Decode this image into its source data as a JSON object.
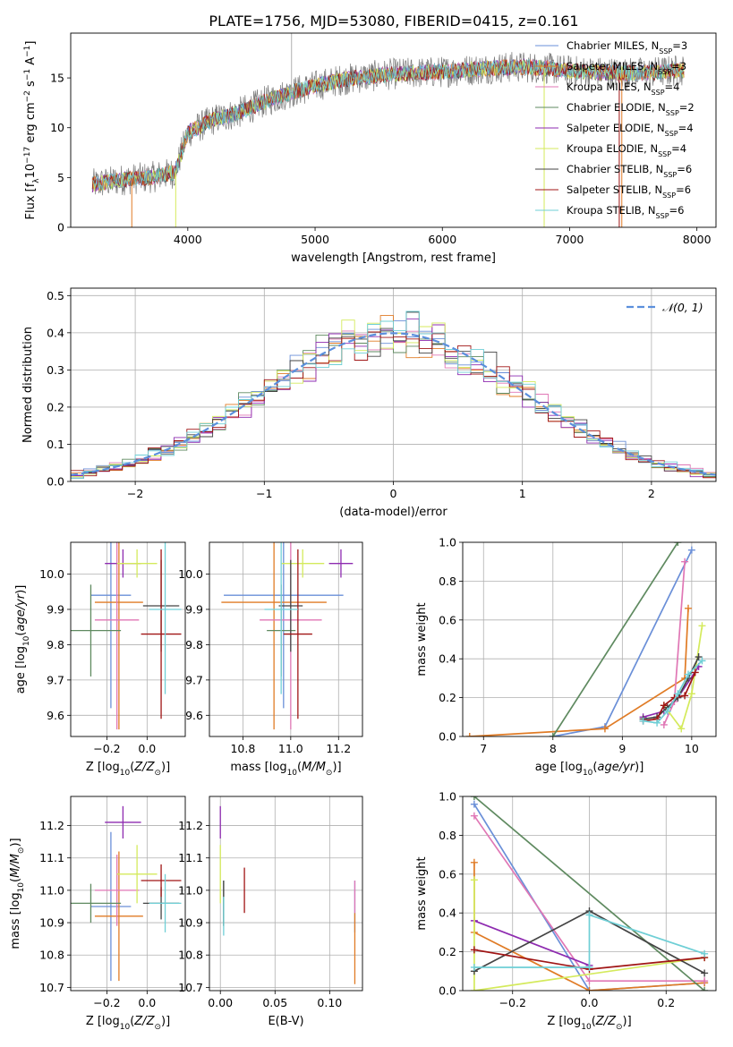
{
  "figure": {
    "title": "PLATE=1756, MJD=53080, FIBERID=0415, z=0.161"
  },
  "colors": {
    "chabrier_miles": "#6a8fd8",
    "salpeter_miles": "#e07b25",
    "kroupa_miles": "#e077b5",
    "chabrier_elodie": "#5f8a60",
    "salpeter_elodie": "#8e2bb0",
    "kroupa_elodie": "#d4ea5c",
    "chabrier_stelib": "#444444",
    "salpeter_stelib": "#a01515",
    "kroupa_stelib": "#6fcfd6",
    "grid": "#b0b0b0",
    "normal_curve": "#5b8fdc"
  },
  "chart_data": [
    {
      "id": "spectrum",
      "type": "line",
      "xlabel": "wavelength [Angstrom, rest frame]",
      "ylabel": "Flux [f_λ10^-17 erg cm^-2 s^-1 A^-1]",
      "xlim": [
        3080,
        8150
      ],
      "ylim": [
        0,
        19.5
      ],
      "xticks": [
        4000,
        5000,
        6000,
        7000,
        8000
      ],
      "yticks": [
        0,
        5,
        10,
        15
      ],
      "grid": false,
      "legend_position": "right",
      "legend": [
        {
          "label": "Chabrier MILES, N",
          "sub": "SSP",
          "suffix": "=3",
          "color_key": "chabrier_miles"
        },
        {
          "label": "Salpeter MILES, N",
          "sub": "SSP",
          "suffix": "=3",
          "color_key": "salpeter_miles"
        },
        {
          "label": "Kroupa MILES, N",
          "sub": "SSP",
          "suffix": "=4",
          "color_key": "kroupa_miles"
        },
        {
          "label": "Chabrier ELODIE, N",
          "sub": "SSP",
          "suffix": "=2",
          "color_key": "chabrier_elodie"
        },
        {
          "label": "Salpeter ELODIE, N",
          "sub": "SSP",
          "suffix": "=4",
          "color_key": "salpeter_elodie"
        },
        {
          "label": "Kroupa ELODIE, N",
          "sub": "SSP",
          "suffix": "=4",
          "color_key": "kroupa_elodie"
        },
        {
          "label": "Chabrier STELIB, N",
          "sub": "SSP",
          "suffix": "=6",
          "color_key": "chabrier_stelib"
        },
        {
          "label": "Salpeter STELIB, N",
          "sub": "SSP",
          "suffix": "=6",
          "color_key": "salpeter_stelib"
        },
        {
          "label": "Kroupa STELIB, N",
          "sub": "SSP",
          "suffix": "=6",
          "color_key": "kroupa_stelib"
        }
      ],
      "continuum": [
        [
          3250,
          4.3
        ],
        [
          3500,
          4.8
        ],
        [
          3700,
          5.0
        ],
        [
          3900,
          5.5
        ],
        [
          4000,
          9.5
        ],
        [
          4200,
          10.8
        ],
        [
          4400,
          11.5
        ],
        [
          4600,
          12.6
        ],
        [
          4800,
          13.5
        ],
        [
          5000,
          14.2
        ],
        [
          5200,
          14.8
        ],
        [
          5400,
          15.1
        ],
        [
          5600,
          15.4
        ],
        [
          5800,
          15.5
        ],
        [
          6000,
          15.6
        ],
        [
          6200,
          15.8
        ],
        [
          6400,
          16.0
        ],
        [
          6600,
          16.1
        ],
        [
          6800,
          16.0
        ],
        [
          7000,
          15.7
        ],
        [
          7200,
          15.6
        ],
        [
          7400,
          15.5
        ],
        [
          7600,
          15.5
        ],
        [
          7900,
          15.8
        ]
      ],
      "spikes": [
        {
          "x": 4815,
          "y": 19.5,
          "color_key": "grid"
        },
        {
          "x": 3560,
          "y": 0,
          "color_key": "salpeter_miles"
        },
        {
          "x": 3905,
          "y": 0,
          "color_key": "kroupa_elodie"
        },
        {
          "x": 6800,
          "y": 0,
          "color_key": "kroupa_elodie"
        },
        {
          "x": 7390,
          "y": 0,
          "color_key": "salpeter_stelib"
        },
        {
          "x": 7410,
          "y": 0,
          "color_key": "salpeter_miles"
        }
      ]
    },
    {
      "id": "residuals",
      "type": "histogram",
      "xlabel": "(data-model)/error",
      "ylabel": "Normed distribution",
      "xlim": [
        -2.5,
        2.5
      ],
      "ylim": [
        0,
        0.52
      ],
      "xticks": [
        -2,
        -1,
        0,
        1,
        2
      ],
      "yticks": [
        0.0,
        0.1,
        0.2,
        0.3,
        0.4,
        0.5
      ],
      "grid": true,
      "bin_width": 0.1,
      "legend_position": "top-right",
      "normal_legend": "𝒩(0, 1)",
      "normal_mu": 0,
      "normal_sigma": 1
    },
    {
      "id": "age_vs_Z",
      "type": "errorbar",
      "xlabel": "Z [log10(Z/Z⊙)]",
      "ylabel": "age  [log10(age/yr)]",
      "xlim": [
        -0.38,
        0.19
      ],
      "ylim": [
        9.54,
        10.09
      ],
      "xticks": [
        -0.2,
        0.0
      ],
      "yticks": [
        9.6,
        9.7,
        9.8,
        9.9,
        10.0
      ],
      "grid": true,
      "points": [
        {
          "color_key": "chabrier_miles",
          "x": -0.18,
          "xerr": 0.1,
          "y": 9.94,
          "yerr": 0.32
        },
        {
          "color_key": "salpeter_miles",
          "x": -0.14,
          "xerr": 0.12,
          "y": 9.92,
          "yerr": 0.36
        },
        {
          "color_key": "kroupa_miles",
          "x": -0.15,
          "xerr": 0.11,
          "y": 9.87,
          "yerr": 0.31
        },
        {
          "color_key": "chabrier_elodie",
          "x": -0.28,
          "xerr": 0.15,
          "y": 9.84,
          "yerr": 0.13
        },
        {
          "color_key": "salpeter_elodie",
          "x": -0.12,
          "xerr": 0.09,
          "y": 10.03,
          "yerr": 0.04
        },
        {
          "color_key": "kroupa_elodie",
          "x": -0.05,
          "xerr": 0.1,
          "y": 10.03,
          "yerr": 0.04
        },
        {
          "color_key": "chabrier_stelib",
          "x": 0.07,
          "xerr": 0.09,
          "y": 9.91,
          "yerr": 0.13
        },
        {
          "color_key": "salpeter_stelib",
          "x": 0.07,
          "xerr": 0.1,
          "y": 9.83,
          "yerr": 0.24
        },
        {
          "color_key": "kroupa_stelib",
          "x": 0.09,
          "xerr": 0.08,
          "y": 9.9,
          "yerr": 0.24
        }
      ]
    },
    {
      "id": "age_vs_mass",
      "type": "errorbar",
      "xlabel": "mass [log10(M/M⊙)]",
      "ylabel": "",
      "xlim": [
        10.66,
        11.3
      ],
      "ylim": [
        9.54,
        10.09
      ],
      "xticks": [
        10.8,
        11.0,
        11.2
      ],
      "yticks": [
        9.6,
        9.7,
        9.8,
        9.9,
        10.0
      ],
      "grid": true,
      "points": [
        {
          "color_key": "chabrier_miles",
          "x": 10.97,
          "xerr": 0.25,
          "y": 9.94,
          "yerr": 0.32
        },
        {
          "color_key": "salpeter_miles",
          "x": 10.93,
          "xerr": 0.22,
          "y": 9.92,
          "yerr": 0.36
        },
        {
          "color_key": "kroupa_miles",
          "x": 11.0,
          "xerr": 0.13,
          "y": 9.87,
          "yerr": 0.31
        },
        {
          "color_key": "chabrier_elodie",
          "x": 10.96,
          "xerr": 0.06,
          "y": 9.84,
          "yerr": 0.13
        },
        {
          "color_key": "salpeter_elodie",
          "x": 11.21,
          "xerr": 0.05,
          "y": 10.03,
          "yerr": 0.04
        },
        {
          "color_key": "kroupa_elodie",
          "x": 11.05,
          "xerr": 0.09,
          "y": 10.03,
          "yerr": 0.04
        },
        {
          "color_key": "chabrier_stelib",
          "x": 11.0,
          "xerr": 0.05,
          "y": 9.91,
          "yerr": 0.13
        },
        {
          "color_key": "salpeter_stelib",
          "x": 11.03,
          "xerr": 0.06,
          "y": 9.83,
          "yerr": 0.24
        },
        {
          "color_key": "kroupa_stelib",
          "x": 10.96,
          "xerr": 0.07,
          "y": 9.9,
          "yerr": 0.24
        }
      ]
    },
    {
      "id": "weight_vs_age",
      "type": "line",
      "xlabel": "age  [log10(age/yr)]",
      "ylabel": "mass weight",
      "xlim": [
        6.7,
        10.35
      ],
      "ylim": [
        0,
        1.0
      ],
      "xticks": [
        7,
        8,
        9,
        10
      ],
      "yticks": [
        0.0,
        0.2,
        0.4,
        0.6,
        0.8,
        1.0
      ],
      "grid": true,
      "series": [
        {
          "color_key": "chabrier_miles",
          "points": [
            [
              8.0,
              0.0
            ],
            [
              8.75,
              0.05
            ],
            [
              10.0,
              0.96
            ]
          ]
        },
        {
          "color_key": "salpeter_miles",
          "points": [
            [
              6.8,
              0.0
            ],
            [
              8.75,
              0.04
            ],
            [
              9.9,
              0.3
            ],
            [
              9.95,
              0.66
            ]
          ]
        },
        {
          "color_key": "kroupa_miles",
          "points": [
            [
              9.6,
              0.06
            ],
            [
              9.75,
              0.18
            ],
            [
              9.9,
              0.9
            ]
          ]
        },
        {
          "color_key": "chabrier_elodie",
          "points": [
            [
              8.0,
              0.0
            ],
            [
              9.8,
              1.0
            ]
          ]
        },
        {
          "color_key": "salpeter_elodie",
          "points": [
            [
              9.3,
              0.1
            ],
            [
              9.6,
              0.13
            ],
            [
              9.8,
              0.2
            ],
            [
              10.1,
              0.36
            ]
          ]
        },
        {
          "color_key": "kroupa_elodie",
          "points": [
            [
              9.6,
              0.16
            ],
            [
              9.85,
              0.04
            ],
            [
              10.0,
              0.22
            ],
            [
              10.15,
              0.57
            ]
          ]
        },
        {
          "color_key": "chabrier_stelib",
          "points": [
            [
              9.3,
              0.09
            ],
            [
              9.5,
              0.1
            ],
            [
              9.65,
              0.15
            ],
            [
              9.8,
              0.2
            ],
            [
              9.95,
              0.3
            ],
            [
              10.1,
              0.41
            ]
          ]
        },
        {
          "color_key": "salpeter_stelib",
          "points": [
            [
              9.3,
              0.08
            ],
            [
              9.5,
              0.09
            ],
            [
              9.6,
              0.16
            ],
            [
              9.75,
              0.2
            ],
            [
              9.9,
              0.21
            ],
            [
              10.05,
              0.33
            ]
          ]
        },
        {
          "color_key": "kroupa_stelib",
          "points": [
            [
              9.3,
              0.08
            ],
            [
              9.5,
              0.07
            ],
            [
              9.65,
              0.13
            ],
            [
              9.8,
              0.22
            ],
            [
              9.95,
              0.32
            ],
            [
              10.15,
              0.39
            ]
          ]
        }
      ]
    },
    {
      "id": "mass_vs_Z",
      "type": "errorbar",
      "xlabel": "Z [log10(Z/Z⊙)]",
      "ylabel": "mass [log10(M/M⊙)]",
      "xlim": [
        -0.38,
        0.19
      ],
      "ylim": [
        10.69,
        11.29
      ],
      "xticks": [
        -0.2,
        0.0
      ],
      "yticks": [
        10.7,
        10.8,
        10.9,
        11.0,
        11.1,
        11.2
      ],
      "grid": true,
      "points": [
        {
          "color_key": "chabrier_miles",
          "x": -0.18,
          "xerr": 0.1,
          "y": 10.95,
          "yerr": 0.23
        },
        {
          "color_key": "salpeter_miles",
          "x": -0.14,
          "xerr": 0.12,
          "y": 10.92,
          "yerr": 0.2
        },
        {
          "color_key": "kroupa_miles",
          "x": -0.15,
          "xerr": 0.11,
          "y": 11.0,
          "yerr": 0.11
        },
        {
          "color_key": "chabrier_elodie",
          "x": -0.28,
          "xerr": 0.15,
          "y": 10.96,
          "yerr": 0.06
        },
        {
          "color_key": "salpeter_elodie",
          "x": -0.12,
          "xerr": 0.09,
          "y": 11.21,
          "yerr": 0.05
        },
        {
          "color_key": "kroupa_elodie",
          "x": -0.05,
          "xerr": 0.1,
          "y": 11.05,
          "yerr": 0.09
        },
        {
          "color_key": "chabrier_stelib",
          "x": 0.07,
          "xerr": 0.09,
          "y": 10.96,
          "yerr": 0.05
        },
        {
          "color_key": "salpeter_stelib",
          "x": 0.07,
          "xerr": 0.1,
          "y": 11.03,
          "yerr": 0.05
        },
        {
          "color_key": "kroupa_stelib",
          "x": 0.09,
          "xerr": 0.08,
          "y": 10.96,
          "yerr": 0.09
        }
      ]
    },
    {
      "id": "mass_vs_ebv",
      "type": "errorbar",
      "xlabel": "E(B-V)",
      "ylabel": "",
      "xlim": [
        -0.01,
        0.13
      ],
      "ylim": [
        10.69,
        11.29
      ],
      "xticks": [
        0.0,
        0.05,
        0.1
      ],
      "yticks": [
        10.7,
        10.8,
        10.9,
        11.0,
        11.1,
        11.2
      ],
      "grid": true,
      "points": [
        {
          "color_key": "chabrier_miles",
          "x": 0.123,
          "xerr": 0,
          "y": 10.95,
          "yerr": 0.08
        },
        {
          "color_key": "salpeter_miles",
          "x": 0.123,
          "xerr": 0,
          "y": 10.82,
          "yerr": 0.11
        },
        {
          "color_key": "kroupa_miles",
          "x": 0.123,
          "xerr": 0,
          "y": 10.98,
          "yerr": 0.05
        },
        {
          "color_key": "chabrier_elodie",
          "x": 0.003,
          "xerr": 0,
          "y": 10.96,
          "yerr": 0.07
        },
        {
          "color_key": "salpeter_elodie",
          "x": 0.0,
          "xerr": 0,
          "y": 11.21,
          "yerr": 0.05
        },
        {
          "color_key": "kroupa_elodie",
          "x": 0.0,
          "xerr": 0,
          "y": 11.05,
          "yerr": 0.09
        },
        {
          "color_key": "chabrier_stelib",
          "x": 0.003,
          "xerr": 0,
          "y": 10.96,
          "yerr": 0.07
        },
        {
          "color_key": "salpeter_stelib",
          "x": 0.022,
          "xerr": 0,
          "y": 11.0,
          "yerr": 0.07
        },
        {
          "color_key": "kroupa_stelib",
          "x": 0.003,
          "xerr": 0,
          "y": 10.92,
          "yerr": 0.06
        }
      ]
    },
    {
      "id": "weight_vs_Z",
      "type": "line",
      "xlabel": "Z [log10(Z/Z⊙)]",
      "ylabel": "mass weight",
      "xlim": [
        -0.33,
        0.33
      ],
      "ylim": [
        0,
        1.0
      ],
      "xticks": [
        -0.2,
        0.0,
        0.2
      ],
      "yticks": [
        0.0,
        0.2,
        0.4,
        0.6,
        0.8,
        1.0
      ],
      "grid": true,
      "series": [
        {
          "color_key": "chabrier_miles",
          "points": [
            [
              -0.3,
              0.96
            ],
            [
              0.0,
              0.0
            ],
            [
              0.3,
              0.04
            ]
          ]
        },
        {
          "color_key": "salpeter_miles",
          "points": [
            [
              -0.3,
              0.66
            ],
            [
              -0.3,
              0.3
            ],
            [
              0.0,
              0.0
            ],
            [
              0.3,
              0.04
            ]
          ]
        },
        {
          "color_key": "kroupa_miles",
          "points": [
            [
              -0.3,
              0.9
            ],
            [
              0.0,
              0.05
            ],
            [
              0.3,
              0.05
            ]
          ]
        },
        {
          "color_key": "chabrier_elodie",
          "points": [
            [
              -0.3,
              1.0
            ],
            [
              0.3,
              0.0
            ]
          ]
        },
        {
          "color_key": "salpeter_elodie",
          "points": [
            [
              -0.3,
              0.36
            ],
            [
              0.0,
              0.13
            ]
          ]
        },
        {
          "color_key": "kroupa_elodie",
          "points": [
            [
              -0.3,
              0.57
            ],
            [
              -0.3,
              0.0
            ],
            [
              0.3,
              0.17
            ]
          ]
        },
        {
          "color_key": "chabrier_stelib",
          "points": [
            [
              -0.3,
              0.1
            ],
            [
              0.0,
              0.41
            ],
            [
              0.3,
              0.09
            ]
          ]
        },
        {
          "color_key": "salpeter_stelib",
          "points": [
            [
              -0.3,
              0.21
            ],
            [
              0.0,
              0.11
            ],
            [
              0.3,
              0.17
            ]
          ]
        },
        {
          "color_key": "kroupa_stelib",
          "points": [
            [
              -0.3,
              0.12
            ],
            [
              0.0,
              0.12
            ],
            [
              0.0,
              0.39
            ],
            [
              0.3,
              0.19
            ]
          ]
        }
      ]
    }
  ]
}
